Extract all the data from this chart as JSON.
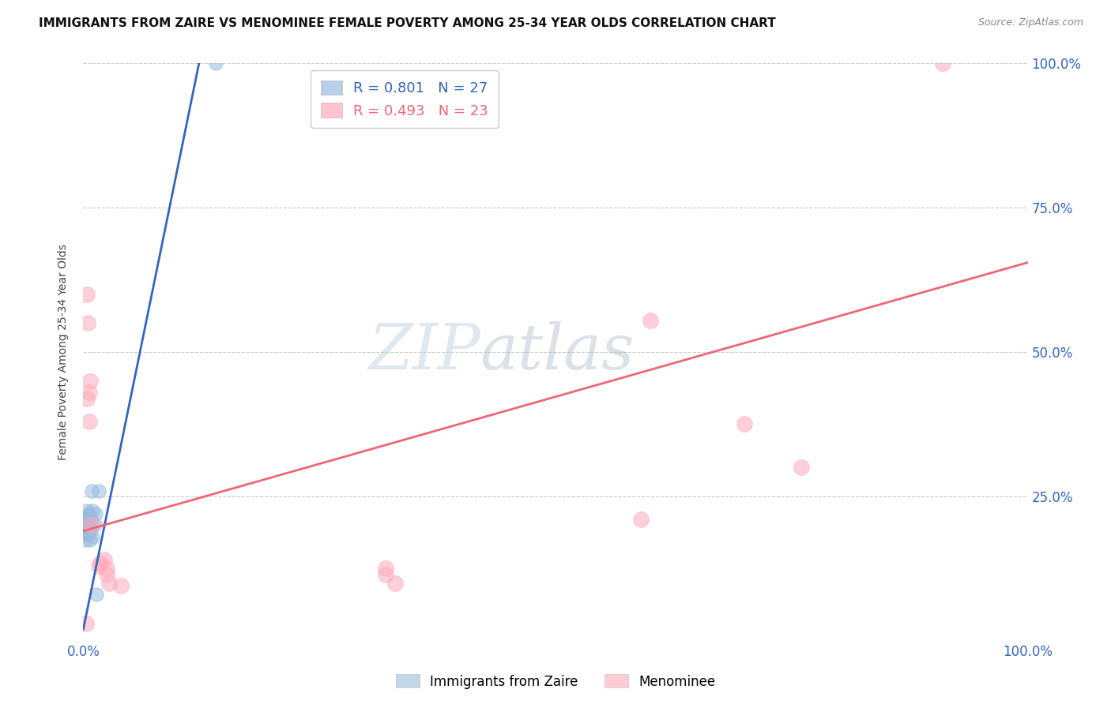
{
  "title": "IMMIGRANTS FROM ZAIRE VS MENOMINEE FEMALE POVERTY AMONG 25-34 YEAR OLDS CORRELATION CHART",
  "source": "Source: ZipAtlas.com",
  "ylabel": "Female Poverty Among 25-34 Year Olds",
  "xlim": [
    0.0,
    1.0
  ],
  "ylim": [
    0.0,
    1.0
  ],
  "xticklabels_show": [
    "0.0%",
    "100.0%"
  ],
  "xticklabels_pos": [
    0.0,
    1.0
  ],
  "ytick_positions": [
    0.0,
    0.25,
    0.5,
    0.75,
    1.0
  ],
  "yticklabels_right": [
    "",
    "25.0%",
    "50.0%",
    "75.0%",
    "100.0%"
  ],
  "background_color": "#ffffff",
  "grid_color": "#cccccc",
  "watermark_zip": "ZIP",
  "watermark_atlas": "atlas",
  "blue_color": "#99bbdd",
  "pink_color": "#ffaabb",
  "blue_line_color": "#3366bb",
  "pink_line_color": "#ee6677",
  "blue_label": "Immigrants from Zaire",
  "pink_label": "Menominee",
  "blue_R": "0.801",
  "blue_N": "27",
  "pink_R": "0.493",
  "pink_N": "23",
  "blue_points_x": [
    0.002,
    0.002,
    0.003,
    0.003,
    0.003,
    0.004,
    0.004,
    0.004,
    0.004,
    0.005,
    0.005,
    0.005,
    0.006,
    0.006,
    0.006,
    0.007,
    0.007,
    0.008,
    0.008,
    0.009,
    0.01,
    0.01,
    0.012,
    0.013,
    0.014,
    0.016,
    0.14
  ],
  "blue_points_y": [
    0.175,
    0.195,
    0.185,
    0.2,
    0.21,
    0.19,
    0.205,
    0.215,
    0.225,
    0.185,
    0.2,
    0.215,
    0.185,
    0.2,
    0.22,
    0.175,
    0.195,
    0.195,
    0.21,
    0.26,
    0.18,
    0.225,
    0.2,
    0.22,
    0.08,
    0.26,
    1.0
  ],
  "pink_points_x": [
    0.003,
    0.004,
    0.004,
    0.005,
    0.006,
    0.006,
    0.007,
    0.009,
    0.016,
    0.018,
    0.022,
    0.025,
    0.025,
    0.027,
    0.04,
    0.32,
    0.32,
    0.33,
    0.59,
    0.6,
    0.7,
    0.76,
    0.91
  ],
  "pink_points_y": [
    0.03,
    0.42,
    0.6,
    0.55,
    0.38,
    0.43,
    0.45,
    0.2,
    0.13,
    0.135,
    0.14,
    0.125,
    0.115,
    0.1,
    0.095,
    0.125,
    0.115,
    0.1,
    0.21,
    0.555,
    0.375,
    0.3,
    1.0
  ],
  "blue_trendline_x": [
    0.0,
    0.125
  ],
  "blue_trendline_y": [
    0.02,
    1.02
  ],
  "pink_trendline_x": [
    0.0,
    1.0
  ],
  "pink_trendline_y": [
    0.19,
    0.655
  ],
  "title_fontsize": 11,
  "source_fontsize": 9,
  "axis_label_fontsize": 10,
  "tick_fontsize": 12,
  "legend_fontsize": 13
}
